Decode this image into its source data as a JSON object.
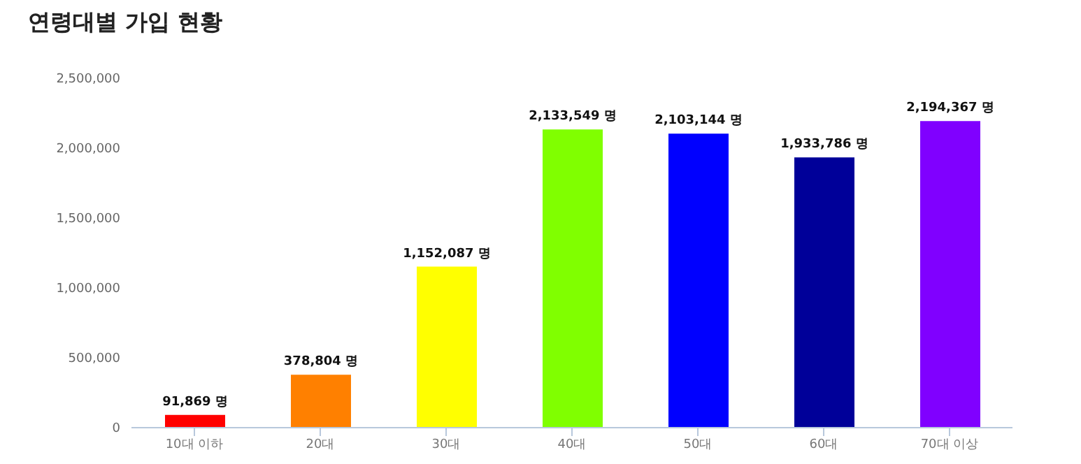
{
  "chart_data": {
    "type": "bar",
    "title": "연령대별 가입 현황",
    "categories": [
      "10대 이하",
      "20대",
      "30대",
      "40대",
      "50대",
      "60대",
      "70대 이상"
    ],
    "values": [
      91869,
      378804,
      1152087,
      2133549,
      2103144,
      1933786,
      2194367
    ],
    "colors": [
      "#ff0000",
      "#ff8000",
      "#ffff00",
      "#80ff00",
      "#0000ff",
      "#000099",
      "#8000ff"
    ],
    "value_labels": [
      "91,869 명",
      "378,804 명",
      "1,152,087 명",
      "2,133,549 명",
      "2,103,144 명",
      "1,933,786 명",
      "2,194,367 명"
    ],
    "ylim": [
      0,
      2500000
    ],
    "yticks": [
      0,
      {
        "value": 500000,
        "label": "500,000"
      },
      {
        "value": 1000000,
        "label": "1,000,000"
      },
      {
        "value": 1500000,
        "label": "1,500,000"
      },
      {
        "value": 2000000,
        "label": "2,000,000"
      },
      {
        "value": 2500000,
        "label": "2,500,000"
      }
    ],
    "grid": false
  }
}
